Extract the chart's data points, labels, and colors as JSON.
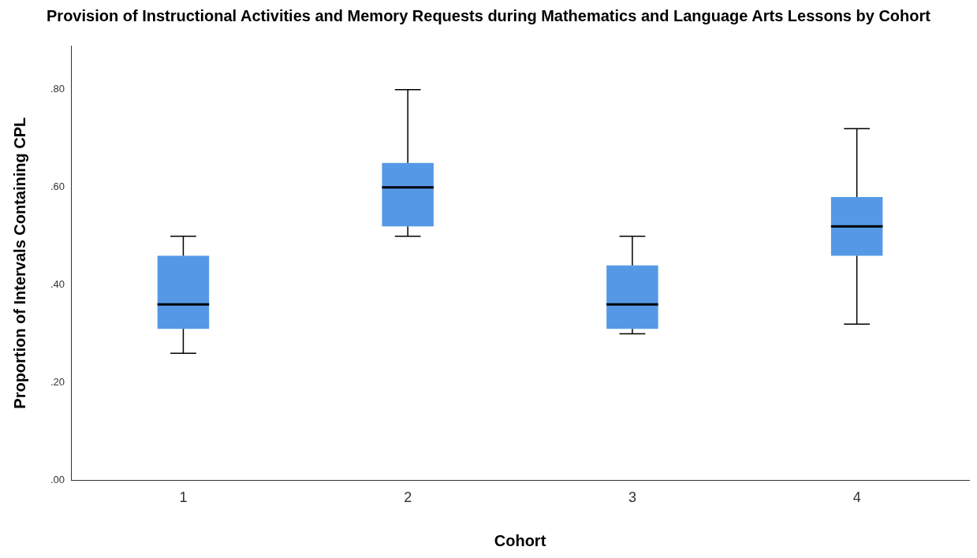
{
  "chart_data": {
    "type": "box",
    "title": "Provision of Instructional Activities and Memory Requests during Mathematics and Language Arts Lessons by Cohort",
    "xlabel": "Cohort",
    "ylabel": "Proportion of Intervals Containing CPL",
    "categories": [
      "1",
      "2",
      "3",
      "4"
    ],
    "color": "#5599e6",
    "boxes": [
      {
        "low": 0.26,
        "q1": 0.31,
        "median": 0.36,
        "q3": 0.46,
        "high": 0.5
      },
      {
        "low": 0.5,
        "q1": 0.52,
        "median": 0.6,
        "q3": 0.65,
        "high": 0.8
      },
      {
        "low": 0.3,
        "q1": 0.31,
        "median": 0.36,
        "q3": 0.44,
        "high": 0.5
      },
      {
        "low": 0.32,
        "q1": 0.46,
        "median": 0.52,
        "q3": 0.58,
        "high": 0.72
      }
    ],
    "ylim": [
      0,
      0.89
    ],
    "yticks": [
      {
        "value": 0,
        "label": ".00"
      },
      {
        "value": 0.2,
        "label": ".20"
      },
      {
        "value": 0.4,
        "label": ".40"
      },
      {
        "value": 0.6,
        "label": ".60"
      },
      {
        "value": 0.8,
        "label": ".80"
      }
    ],
    "grid": false,
    "legend": false
  }
}
